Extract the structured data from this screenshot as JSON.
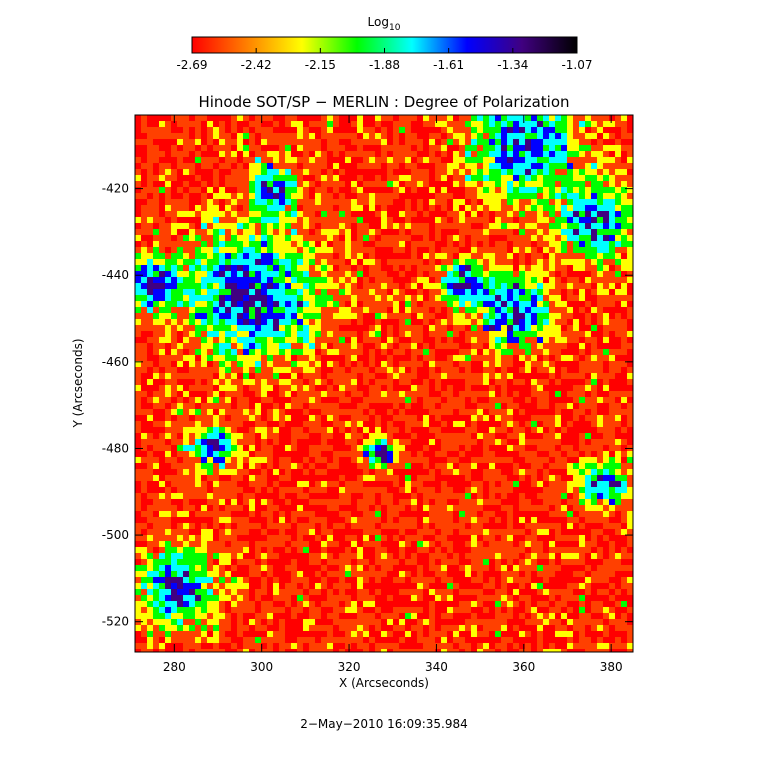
{
  "chart_data": {
    "type": "image",
    "title": "Hinode SOT/SP − MERLIN : Degree of Polarization",
    "xlabel": "X (Arcseconds)",
    "ylabel": "Y (Arcseconds)",
    "xlim": [
      271,
      385
    ],
    "ylim": [
      -527,
      -403
    ],
    "xticks": [
      280,
      300,
      320,
      340,
      360,
      380
    ],
    "yticks": [
      -520,
      -500,
      -480,
      -460,
      -440,
      -420
    ],
    "footer": "2−May−2010 16:09:35.984",
    "colorbar": {
      "label": "Log",
      "label_subscript": "10",
      "lim": [
        -2.69,
        -1.07
      ],
      "ticks": [
        -2.69,
        -2.42,
        -2.15,
        -1.88,
        -1.61,
        -1.34,
        -1.07
      ],
      "colormap": [
        "#ff0000",
        "#ff8000",
        "#ffff00",
        "#00ff00",
        "#00ffff",
        "#0000ff",
        "#400080",
        "#000000"
      ]
    }
  }
}
